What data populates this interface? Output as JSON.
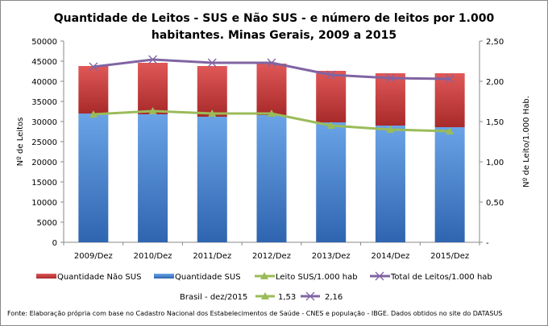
{
  "chart_data": {
    "type": "bar",
    "stacked": true,
    "title_line1": "Quantidade de Leitos - SUS e Não SUS - e número de leitos por 1.000",
    "title_line2": "habitantes. Minas Gerais, 2009 a 2015",
    "categories": [
      "2009/Dez",
      "2010/Dez",
      "2011/Dez",
      "2012/Dez",
      "2013/Dez",
      "2014/Dez",
      "2015/Dez"
    ],
    "ylabel": "Nº de Leitos",
    "y2label": "Nº de Leito/1.000 Hab.",
    "ylim": [
      0,
      50000
    ],
    "y2lim": [
      0,
      2.5
    ],
    "yticks": [
      "0",
      "5000",
      "10000",
      "15000",
      "20000",
      "25000",
      "30000",
      "35000",
      "40000",
      "45000",
      "50000"
    ],
    "y2ticks": [
      "-",
      "0,50",
      "1,00",
      "1,50",
      "2,00",
      "2,50"
    ],
    "grid": false,
    "series": [
      {
        "name": "Quantidade SUS",
        "kind": "bar",
        "axis": "left",
        "color": "#4a86d0",
        "values": [
          32000,
          31800,
          31200,
          31600,
          29800,
          29000,
          28600
        ]
      },
      {
        "name": "Quantidade Não SUS",
        "kind": "bar",
        "axis": "left",
        "color": "#d04040",
        "values": [
          11800,
          12800,
          12600,
          12800,
          12800,
          13000,
          13400
        ]
      },
      {
        "name": "Leito SUS/1.000 hab",
        "kind": "line",
        "marker": "triangle",
        "axis": "right",
        "color": "#9bbb59",
        "values": [
          1.59,
          1.63,
          1.6,
          1.6,
          1.45,
          1.4,
          1.38
        ]
      },
      {
        "name": "Total de Leitos/1.000 hab",
        "kind": "line",
        "marker": "x",
        "axis": "right",
        "color": "#8064a2",
        "values": [
          2.18,
          2.27,
          2.23,
          2.23,
          2.08,
          2.04,
          2.03
        ]
      }
    ],
    "legend_order": [
      "Quantidade Não SUS",
      "Quantidade SUS",
      "Leito SUS/1.000 hab",
      "Total de Leitos/1.000 hab"
    ],
    "legend_placement": "bottom",
    "brasil_label": "Brasil -  dez/2015",
    "brasil_sus": "1,53",
    "brasil_total": "2,16",
    "source": "Fonte: Elaboração própria com base no  Cadastro Nacional dos Estabelecimentos de Saúde - CNES e população - IBGE. Dados obtidos no site do DATASUS"
  }
}
